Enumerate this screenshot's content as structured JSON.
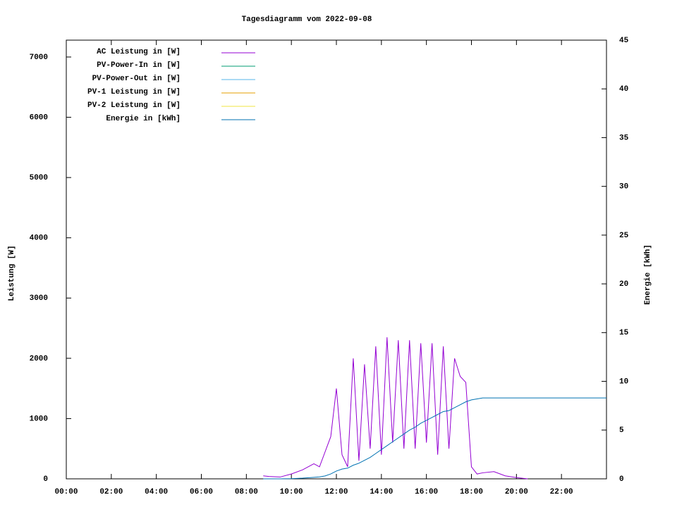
{
  "chart_data": {
    "type": "line",
    "title": "Tagesdiagramm vom 2022-09-08",
    "y_label": "Leistung [W]",
    "y2_label": "Energie [kWh]",
    "xlim": [
      0,
      24
    ],
    "xticks": [
      {
        "value": 0,
        "label": "00:00"
      },
      {
        "value": 2,
        "label": "02:00"
      },
      {
        "value": 4,
        "label": "04:00"
      },
      {
        "value": 6,
        "label": "06:00"
      },
      {
        "value": 8,
        "label": "08:00"
      },
      {
        "value": 10,
        "label": "10:00"
      },
      {
        "value": 12,
        "label": "12:00"
      },
      {
        "value": 14,
        "label": "14:00"
      },
      {
        "value": 16,
        "label": "16:00"
      },
      {
        "value": 18,
        "label": "18:00"
      },
      {
        "value": 20,
        "label": "20:00"
      },
      {
        "value": 22,
        "label": "22:00"
      }
    ],
    "ylim": [
      0,
      7280
    ],
    "yticks": [
      0,
      1000,
      2000,
      3000,
      4000,
      5000,
      6000,
      7000
    ],
    "y2lim": [
      0,
      45
    ],
    "y2ticks": [
      0,
      5,
      10,
      15,
      20,
      25,
      30,
      35,
      40,
      45
    ],
    "x": [
      8.75,
      9,
      9.5,
      10,
      10.5,
      11,
      11.25,
      11.5,
      11.75,
      12,
      12.25,
      12.5,
      12.75,
      13,
      13.25,
      13.5,
      13.75,
      14,
      14.25,
      14.5,
      14.75,
      15,
      15.25,
      15.5,
      15.75,
      16,
      16.25,
      16.5,
      16.75,
      17,
      17.25,
      17.5,
      17.75,
      18,
      18.25,
      18.5,
      19,
      19.5,
      20,
      20.5,
      22,
      24
    ],
    "series": [
      {
        "name": "AC Leistung in [W]",
        "color": "#9400d3",
        "values": [
          50,
          40,
          30,
          80,
          150,
          250,
          200,
          450,
          700,
          1500,
          400,
          200,
          2000,
          300,
          1900,
          500,
          2200,
          400,
          2350,
          600,
          2300,
          500,
          2300,
          500,
          2250,
          600,
          2250,
          400,
          2200,
          500,
          2000,
          1700,
          1600,
          200,
          80,
          100,
          120,
          50,
          20,
          0,
          null,
          null
        ]
      },
      {
        "name": "PV-Power-In in [W]",
        "color": "#009e73",
        "values": [
          null,
          null,
          null,
          null,
          null,
          null,
          null,
          null,
          null,
          null,
          null,
          null,
          null,
          null,
          null,
          null,
          null,
          null,
          null,
          null,
          null,
          null,
          null,
          null,
          null,
          null,
          null,
          null,
          null,
          null,
          null,
          null,
          null,
          null,
          null,
          null,
          null,
          null,
          null,
          null,
          null,
          null
        ]
      },
      {
        "name": "PV-Power-Out in [W]",
        "color": "#56b4e9",
        "values": [
          null,
          null,
          null,
          null,
          null,
          null,
          null,
          null,
          null,
          null,
          null,
          null,
          null,
          null,
          null,
          null,
          null,
          null,
          null,
          null,
          null,
          null,
          null,
          null,
          null,
          null,
          null,
          null,
          null,
          null,
          null,
          null,
          null,
          null,
          null,
          null,
          null,
          null,
          null,
          null,
          null,
          null
        ]
      },
      {
        "name": "PV-1 Leistung in [W]",
        "color": "#e69f00",
        "values": [
          null,
          null,
          null,
          null,
          null,
          null,
          null,
          null,
          null,
          null,
          null,
          null,
          null,
          null,
          null,
          null,
          null,
          null,
          null,
          null,
          null,
          null,
          null,
          null,
          null,
          null,
          null,
          null,
          null,
          null,
          null,
          null,
          null,
          null,
          null,
          null,
          null,
          null,
          null,
          null,
          null,
          null
        ]
      },
      {
        "name": "PV-2 Leistung in [W]",
        "color": "#f0e442",
        "values": [
          null,
          null,
          null,
          null,
          null,
          null,
          null,
          null,
          null,
          null,
          null,
          null,
          null,
          null,
          null,
          null,
          null,
          null,
          null,
          null,
          null,
          null,
          null,
          null,
          null,
          null,
          null,
          null,
          null,
          null,
          null,
          null,
          null,
          null,
          null,
          null,
          null,
          null,
          null,
          null,
          null,
          null
        ]
      },
      {
        "name": "Energie in [kWh]",
        "color": "#0072b2",
        "axis": "y2",
        "values": [
          0,
          0,
          0,
          0.02,
          0.07,
          0.15,
          0.2,
          0.3,
          0.5,
          0.8,
          1.0,
          1.1,
          1.4,
          1.6,
          1.9,
          2.2,
          2.6,
          3.0,
          3.4,
          3.8,
          4.2,
          4.6,
          5.0,
          5.3,
          5.7,
          6.0,
          6.3,
          6.6,
          6.9,
          7.0,
          7.3,
          7.6,
          7.9,
          8.1,
          8.2,
          8.3,
          8.3,
          8.3,
          8.3,
          8.3,
          8.3,
          8.3
        ]
      }
    ]
  }
}
